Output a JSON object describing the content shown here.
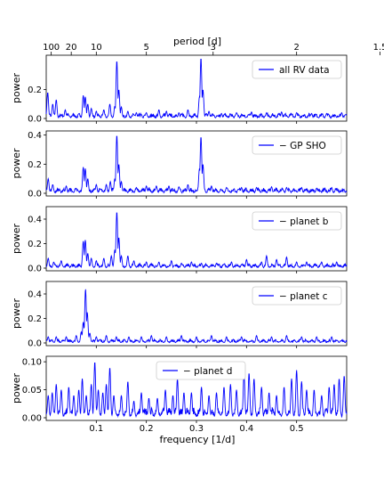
{
  "figure": {
    "top_axis_label": "period [d]",
    "top_ticks": [
      {
        "label": "100",
        "freq": 0.01
      },
      {
        "label": "20",
        "freq": 0.05
      },
      {
        "label": "10",
        "freq": 0.1
      },
      {
        "label": "5",
        "freq": 0.2
      },
      {
        "label": "3",
        "freq": 0.3333
      },
      {
        "label": "2",
        "freq": 0.5
      },
      {
        "label": "1.5",
        "freq": 0.6667
      }
    ],
    "bottom_axis_label": "frequency [1/d]",
    "x_tick_labels": [
      "0.1",
      "0.2",
      "0.3",
      "0.4",
      "0.5"
    ],
    "line_color": "#0000ff"
  },
  "chart_data": [
    {
      "type": "line",
      "ylabel": "power",
      "legend": "all RV data",
      "ylim": [
        0,
        0.42
      ],
      "yticks": [
        "0.0",
        "0.2"
      ],
      "xlim": [
        0.0,
        0.6
      ],
      "peaks": [
        [
          0.003,
          0.18
        ],
        [
          0.013,
          0.1
        ],
        [
          0.02,
          0.13
        ],
        [
          0.038,
          0.06
        ],
        [
          0.074,
          0.16
        ],
        [
          0.078,
          0.15
        ],
        [
          0.083,
          0.1
        ],
        [
          0.09,
          0.07
        ],
        [
          0.1,
          0.05
        ],
        [
          0.115,
          0.06
        ],
        [
          0.127,
          0.1
        ],
        [
          0.137,
          0.085
        ],
        [
          0.141,
          0.4
        ],
        [
          0.145,
          0.2
        ],
        [
          0.15,
          0.08
        ],
        [
          0.163,
          0.05
        ],
        [
          0.18,
          0.04
        ],
        [
          0.2,
          0.04
        ],
        [
          0.225,
          0.06
        ],
        [
          0.24,
          0.05
        ],
        [
          0.265,
          0.04
        ],
        [
          0.283,
          0.06
        ],
        [
          0.306,
          0.15
        ],
        [
          0.309,
          0.42
        ],
        [
          0.313,
          0.2
        ],
        [
          0.325,
          0.05
        ],
        [
          0.35,
          0.035
        ],
        [
          0.38,
          0.04
        ],
        [
          0.41,
          0.045
        ],
        [
          0.44,
          0.04
        ],
        [
          0.47,
          0.045
        ],
        [
          0.5,
          0.04
        ],
        [
          0.53,
          0.035
        ],
        [
          0.56,
          0.035
        ],
        [
          0.59,
          0.04
        ]
      ],
      "baseline": 0.025
    },
    {
      "type": "line",
      "ylabel": "power",
      "legend": "− GP SHO",
      "ylim": [
        0,
        0.41
      ],
      "yticks": [
        "0.0",
        "0.2",
        "0.4"
      ],
      "xlim": [
        0.0,
        0.6
      ],
      "peaks": [
        [
          0.004,
          0.1
        ],
        [
          0.013,
          0.06
        ],
        [
          0.04,
          0.05
        ],
        [
          0.074,
          0.18
        ],
        [
          0.078,
          0.17
        ],
        [
          0.083,
          0.1
        ],
        [
          0.1,
          0.06
        ],
        [
          0.12,
          0.06
        ],
        [
          0.128,
          0.08
        ],
        [
          0.137,
          0.1
        ],
        [
          0.141,
          0.4
        ],
        [
          0.145,
          0.2
        ],
        [
          0.15,
          0.08
        ],
        [
          0.18,
          0.04
        ],
        [
          0.2,
          0.05
        ],
        [
          0.22,
          0.05
        ],
        [
          0.245,
          0.05
        ],
        [
          0.265,
          0.045
        ],
        [
          0.283,
          0.06
        ],
        [
          0.306,
          0.17
        ],
        [
          0.309,
          0.39
        ],
        [
          0.313,
          0.2
        ],
        [
          0.33,
          0.05
        ],
        [
          0.36,
          0.04
        ],
        [
          0.39,
          0.04
        ],
        [
          0.42,
          0.04
        ],
        [
          0.45,
          0.045
        ],
        [
          0.48,
          0.04
        ],
        [
          0.51,
          0.04
        ],
        [
          0.54,
          0.035
        ],
        [
          0.57,
          0.04
        ]
      ],
      "baseline": 0.025
    },
    {
      "type": "line",
      "ylabel": "power",
      "legend": "− planet b",
      "ylim": [
        0,
        0.48
      ],
      "yticks": [
        "0.0",
        "0.2",
        "0.4"
      ],
      "xlim": [
        0.0,
        0.6
      ],
      "peaks": [
        [
          0.004,
          0.08
        ],
        [
          0.015,
          0.05
        ],
        [
          0.03,
          0.06
        ],
        [
          0.074,
          0.22
        ],
        [
          0.078,
          0.23
        ],
        [
          0.083,
          0.12
        ],
        [
          0.09,
          0.08
        ],
        [
          0.1,
          0.06
        ],
        [
          0.115,
          0.08
        ],
        [
          0.13,
          0.1
        ],
        [
          0.137,
          0.15
        ],
        [
          0.141,
          0.46
        ],
        [
          0.145,
          0.25
        ],
        [
          0.15,
          0.1
        ],
        [
          0.163,
          0.1
        ],
        [
          0.175,
          0.06
        ],
        [
          0.2,
          0.05
        ],
        [
          0.225,
          0.05
        ],
        [
          0.25,
          0.06
        ],
        [
          0.27,
          0.04
        ],
        [
          0.29,
          0.05
        ],
        [
          0.31,
          0.04
        ],
        [
          0.34,
          0.04
        ],
        [
          0.37,
          0.05
        ],
        [
          0.4,
          0.07
        ],
        [
          0.43,
          0.05
        ],
        [
          0.44,
          0.1
        ],
        [
          0.46,
          0.07
        ],
        [
          0.48,
          0.09
        ],
        [
          0.5,
          0.05
        ],
        [
          0.52,
          0.05
        ],
        [
          0.55,
          0.05
        ],
        [
          0.58,
          0.05
        ]
      ],
      "baseline": 0.025
    },
    {
      "type": "line",
      "ylabel": "power",
      "legend": "− planet c",
      "ylim": [
        0,
        0.48
      ],
      "yticks": [
        "0.0",
        "0.2",
        "0.4"
      ],
      "xlim": [
        0.0,
        0.6
      ],
      "peaks": [
        [
          0.004,
          0.05
        ],
        [
          0.02,
          0.05
        ],
        [
          0.04,
          0.05
        ],
        [
          0.06,
          0.06
        ],
        [
          0.07,
          0.09
        ],
        [
          0.074,
          0.17
        ],
        [
          0.0785,
          0.44
        ],
        [
          0.082,
          0.25
        ],
        [
          0.087,
          0.08
        ],
        [
          0.1,
          0.05
        ],
        [
          0.12,
          0.06
        ],
        [
          0.14,
          0.05
        ],
        [
          0.165,
          0.05
        ],
        [
          0.19,
          0.05
        ],
        [
          0.21,
          0.06
        ],
        [
          0.24,
          0.05
        ],
        [
          0.27,
          0.06
        ],
        [
          0.3,
          0.05
        ],
        [
          0.33,
          0.06
        ],
        [
          0.36,
          0.05
        ],
        [
          0.39,
          0.05
        ],
        [
          0.42,
          0.06
        ],
        [
          0.45,
          0.05
        ],
        [
          0.48,
          0.06
        ],
        [
          0.51,
          0.05
        ],
        [
          0.54,
          0.05
        ],
        [
          0.57,
          0.05
        ]
      ],
      "baseline": 0.02
    },
    {
      "type": "line",
      "ylabel": "power",
      "legend": "− planet d",
      "ylim": [
        0,
        0.105
      ],
      "yticks": [
        "0.00",
        "0.05",
        "0.10"
      ],
      "xlim": [
        0.0,
        0.6
      ],
      "peaks": [
        [
          0.004,
          0.04
        ],
        [
          0.012,
          0.045
        ],
        [
          0.02,
          0.06
        ],
        [
          0.03,
          0.05
        ],
        [
          0.045,
          0.055
        ],
        [
          0.055,
          0.04
        ],
        [
          0.065,
          0.05
        ],
        [
          0.072,
          0.07
        ],
        [
          0.08,
          0.04
        ],
        [
          0.09,
          0.06
        ],
        [
          0.097,
          0.1
        ],
        [
          0.104,
          0.05
        ],
        [
          0.113,
          0.045
        ],
        [
          0.12,
          0.06
        ],
        [
          0.127,
          0.09
        ],
        [
          0.135,
          0.04
        ],
        [
          0.15,
          0.04
        ],
        [
          0.163,
          0.065
        ],
        [
          0.175,
          0.03
        ],
        [
          0.19,
          0.045
        ],
        [
          0.205,
          0.035
        ],
        [
          0.222,
          0.035
        ],
        [
          0.238,
          0.05
        ],
        [
          0.253,
          0.04
        ],
        [
          0.262,
          0.07
        ],
        [
          0.275,
          0.045
        ],
        [
          0.29,
          0.045
        ],
        [
          0.31,
          0.055
        ],
        [
          0.325,
          0.04
        ],
        [
          0.34,
          0.045
        ],
        [
          0.355,
          0.055
        ],
        [
          0.368,
          0.06
        ],
        [
          0.38,
          0.05
        ],
        [
          0.395,
          0.08
        ],
        [
          0.405,
          0.08
        ],
        [
          0.415,
          0.07
        ],
        [
          0.43,
          0.055
        ],
        [
          0.445,
          0.045
        ],
        [
          0.46,
          0.04
        ],
        [
          0.475,
          0.055
        ],
        [
          0.49,
          0.07
        ],
        [
          0.5,
          0.085
        ],
        [
          0.51,
          0.065
        ],
        [
          0.52,
          0.05
        ],
        [
          0.535,
          0.05
        ],
        [
          0.55,
          0.04
        ],
        [
          0.565,
          0.055
        ],
        [
          0.575,
          0.06
        ],
        [
          0.585,
          0.07
        ],
        [
          0.595,
          0.075
        ]
      ],
      "baseline": 0.012
    }
  ]
}
